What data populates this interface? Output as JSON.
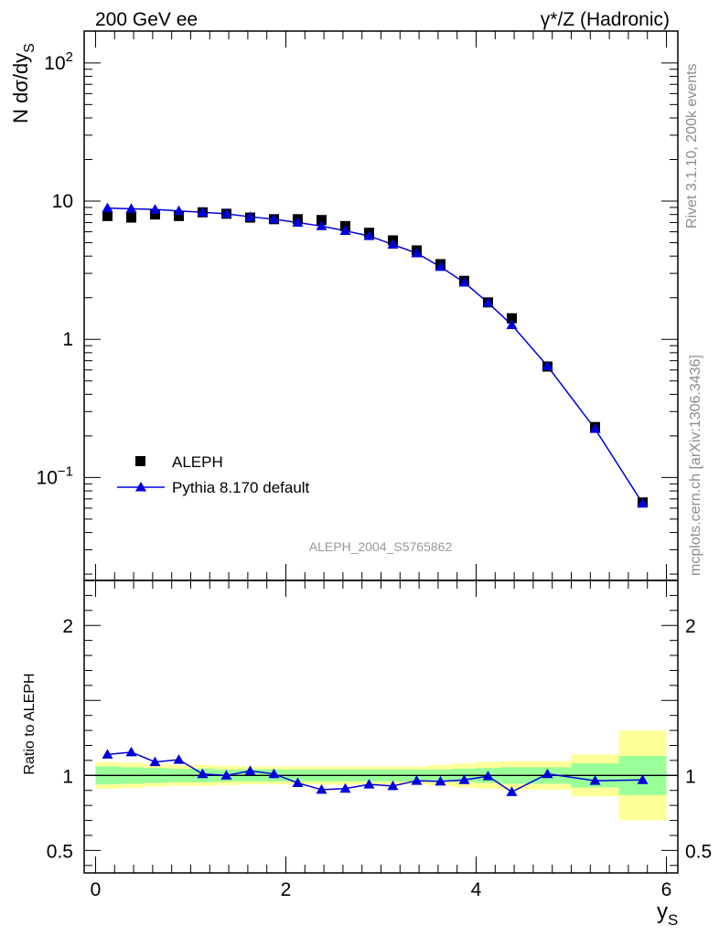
{
  "header": {
    "left": "200 GeV ee",
    "right": "γ*/Z (Hadronic)"
  },
  "side_labels": {
    "top": "Rivet 3.1.10,  200k events",
    "bottom": "mcplots.cern.ch [arXiv:1306.3436]"
  },
  "analysis_tag": "ALEPH_2004_S5765862",
  "colors": {
    "data": "#000000",
    "mc": "#0000dd",
    "band_inner": "#99ff99",
    "band_outer": "#ffff99",
    "analysis_tag": "#999999"
  },
  "chart_data": [
    {
      "type": "scatter",
      "panel": "main",
      "ylabel": "N dσ/dy_S",
      "yscale": "log",
      "ylim": [
        0.018,
        170
      ],
      "xlim": [
        -0.12,
        6.12
      ],
      "yticks": [
        {
          "value": 100,
          "mantissa": "10",
          "exp": "2"
        },
        {
          "value": 10,
          "mantissa": "10",
          "exp": ""
        },
        {
          "value": 1,
          "mantissa": "1",
          "exp": ""
        },
        {
          "value": 0.1,
          "mantissa": "10",
          "exp": "−1"
        }
      ],
      "legend": {
        "placement": "lower-left"
      },
      "series": [
        {
          "name": "ALEPH",
          "marker": "square",
          "x": [
            0.125,
            0.375,
            0.625,
            0.875,
            1.125,
            1.375,
            1.625,
            1.875,
            2.125,
            2.375,
            2.625,
            2.875,
            3.125,
            3.375,
            3.625,
            3.875,
            4.125,
            4.375,
            4.75,
            5.25,
            5.75
          ],
          "y": [
            7.8,
            7.6,
            8.0,
            7.8,
            8.3,
            8.1,
            7.6,
            7.4,
            7.4,
            7.3,
            6.6,
            5.9,
            5.2,
            4.4,
            3.5,
            2.65,
            1.85,
            1.42,
            0.635,
            0.232,
            0.066
          ]
        },
        {
          "name": "Pythia 8.170 default",
          "marker": "triangle",
          "x": [
            0.125,
            0.375,
            0.625,
            0.875,
            1.125,
            1.375,
            1.625,
            1.875,
            2.125,
            2.375,
            2.625,
            2.875,
            3.125,
            3.375,
            3.625,
            3.875,
            4.125,
            4.375,
            4.75,
            5.25,
            5.75
          ],
          "y": [
            8.9,
            8.8,
            8.7,
            8.5,
            8.3,
            8.1,
            7.7,
            7.4,
            7.0,
            6.6,
            6.1,
            5.6,
            4.85,
            4.2,
            3.35,
            2.58,
            1.84,
            1.27,
            0.64,
            0.225,
            0.065
          ]
        }
      ]
    },
    {
      "type": "line",
      "panel": "ratio",
      "ylabel": "Ratio to ALEPH",
      "xlabel": "y_S",
      "ylim": [
        0.35,
        2.3
      ],
      "xlim": [
        -0.12,
        6.12
      ],
      "xticks": [
        0,
        2,
        4,
        6
      ],
      "yticks": [
        0.5,
        1,
        2
      ],
      "series": [
        {
          "name": "Pythia 8.170 default",
          "x": [
            0.125,
            0.375,
            0.625,
            0.875,
            1.125,
            1.375,
            1.625,
            1.875,
            2.125,
            2.375,
            2.625,
            2.875,
            3.125,
            3.375,
            3.625,
            3.875,
            4.125,
            4.375,
            4.75,
            5.25,
            5.75
          ],
          "y": [
            1.14,
            1.155,
            1.09,
            1.105,
            1.01,
            1.0,
            1.03,
            1.01,
            0.95,
            0.905,
            0.912,
            0.94,
            0.93,
            0.965,
            0.96,
            0.97,
            0.995,
            0.89,
            1.01,
            0.965,
            0.97
          ]
        }
      ],
      "uncertainty_bands": {
        "x_edges": [
          0.0,
          0.25,
          0.5,
          0.75,
          1.0,
          1.25,
          1.5,
          1.75,
          2.0,
          2.25,
          2.5,
          2.75,
          3.0,
          3.25,
          3.5,
          3.75,
          4.0,
          4.25,
          4.5,
          5.0,
          5.5,
          6.0
        ],
        "inner": [
          0.06,
          0.055,
          0.05,
          0.045,
          0.045,
          0.04,
          0.04,
          0.04,
          0.04,
          0.04,
          0.04,
          0.04,
          0.04,
          0.04,
          0.04,
          0.045,
          0.05,
          0.055,
          0.055,
          0.08,
          0.13
        ],
        "outer": [
          0.09,
          0.085,
          0.075,
          0.07,
          0.07,
          0.065,
          0.06,
          0.06,
          0.06,
          0.06,
          0.06,
          0.06,
          0.06,
          0.06,
          0.07,
          0.08,
          0.09,
          0.095,
          0.095,
          0.14,
          0.3
        ]
      }
    }
  ]
}
